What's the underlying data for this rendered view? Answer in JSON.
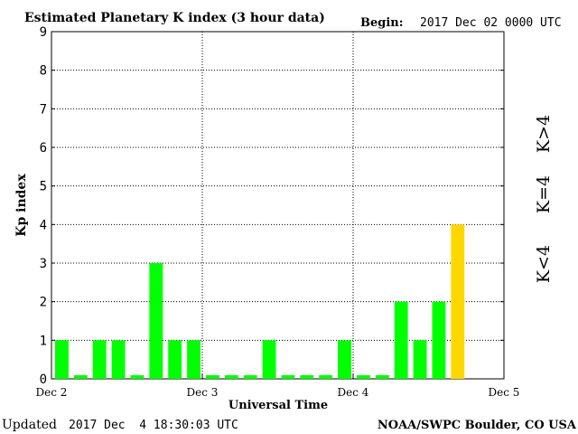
{
  "header": {
    "title": "Estimated Planetary K index (3 hour data)",
    "begin_label": "Begin:",
    "begin_value": "2017 Dec 02 0000 UTC"
  },
  "footer": {
    "updated_label": "Updated",
    "updated_value": "2017 Dec  4 18:30:03 UTC",
    "credit": "NOAA/SWPC Boulder, CO USA"
  },
  "legend": {
    "storm": "K>4",
    "active": "K=4",
    "quiet": "K<4"
  },
  "colors": {
    "quiet": "#00ff00",
    "active": "#ffd700",
    "storm": "#ff2a00",
    "grid": "#000000"
  },
  "chart_data": {
    "type": "bar",
    "title": "Estimated Planetary K index (3 hour data)",
    "xlabel": "Universal Time",
    "ylabel": "Kp index",
    "ylim": [
      0,
      9
    ],
    "yticks": [
      0,
      1,
      2,
      3,
      4,
      5,
      6,
      7,
      8,
      9
    ],
    "xticks": [
      "Dec 2",
      "Dec 3",
      "Dec 4",
      "Dec 5"
    ],
    "interval_hours": 3,
    "grid": true,
    "values": [
      1,
      0,
      1,
      1,
      0,
      3,
      1,
      1,
      0,
      0,
      0,
      1,
      0,
      0,
      0,
      1,
      0,
      0,
      2,
      1,
      2,
      4
    ]
  }
}
